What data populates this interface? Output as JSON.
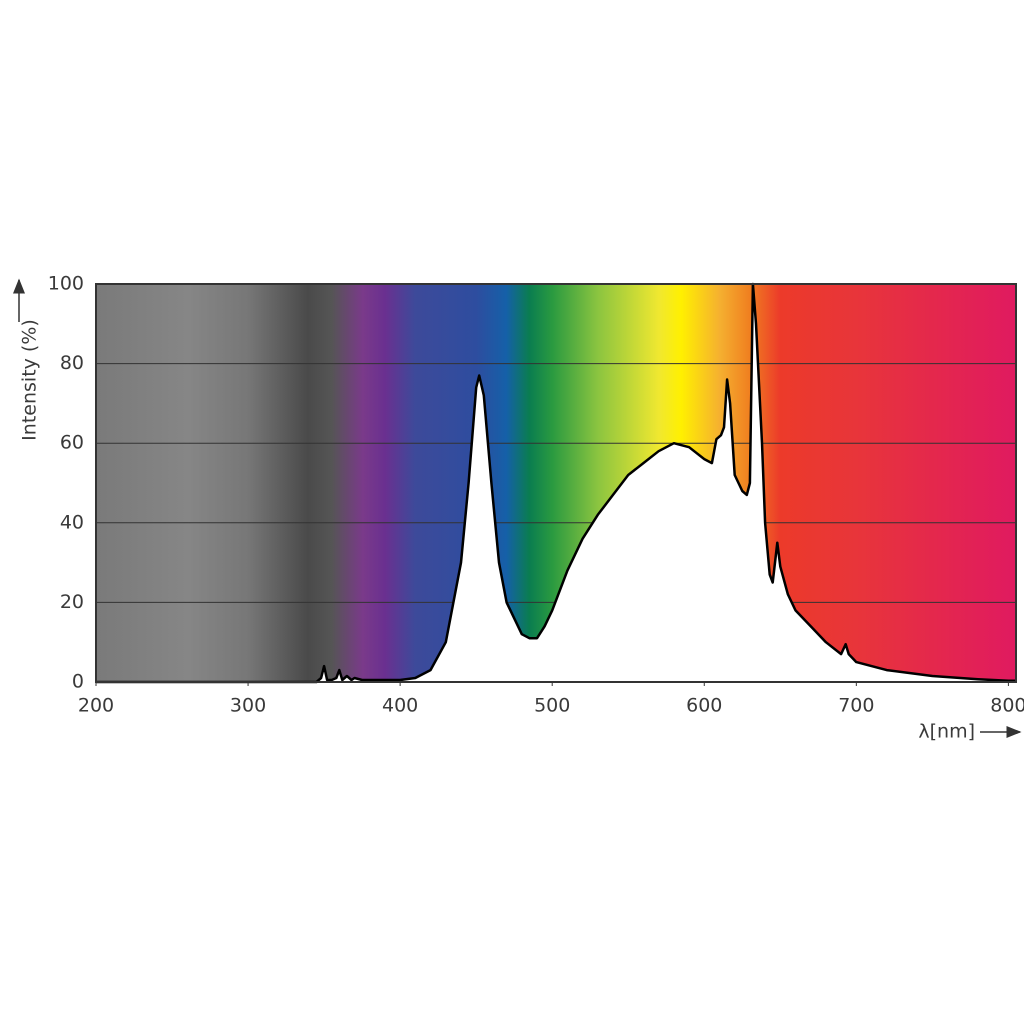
{
  "chart_data": {
    "type": "line",
    "x_label": "λ[nm]",
    "y_label": "Intensity (%)",
    "x": [
      200,
      345,
      348,
      350,
      352,
      355,
      358,
      360,
      362,
      365,
      368,
      370,
      375,
      380,
      390,
      400,
      410,
      420,
      430,
      440,
      445,
      450,
      452,
      455,
      460,
      465,
      470,
      480,
      485,
      490,
      495,
      500,
      510,
      520,
      530,
      540,
      550,
      560,
      570,
      580,
      590,
      600,
      605,
      608,
      611,
      613,
      615,
      617,
      620,
      625,
      628,
      630,
      632,
      634,
      636,
      638,
      640,
      643,
      645,
      648,
      650,
      655,
      660,
      670,
      680,
      690,
      693,
      695,
      700,
      720,
      750,
      780,
      800,
      805
    ],
    "values": [
      0,
      0,
      1,
      4,
      0.5,
      0.5,
      1,
      3,
      0.5,
      1.5,
      0.5,
      1,
      0.5,
      0.5,
      0.5,
      0.5,
      1,
      3,
      10,
      30,
      50,
      74,
      77,
      72,
      50,
      30,
      20,
      12,
      11,
      11,
      14,
      18,
      28,
      36,
      42,
      47,
      52,
      55,
      58,
      60,
      59,
      56,
      55,
      61,
      62,
      64,
      76,
      70,
      52,
      48,
      47,
      50,
      100,
      90,
      75,
      60,
      40,
      27,
      25,
      35,
      29,
      22,
      18,
      14,
      10,
      7,
      9.5,
      7,
      5,
      3,
      1.5,
      0.7,
      0.3,
      0.3
    ],
    "color": "#000000",
    "fill": "#ffffff",
    "xlim": [
      200,
      805
    ],
    "ylim": [
      0,
      100
    ],
    "xticks": [
      200,
      300,
      400,
      500,
      600,
      700,
      800
    ],
    "yticks": [
      0,
      20,
      40,
      60,
      80,
      100
    ],
    "grid": true
  }
}
